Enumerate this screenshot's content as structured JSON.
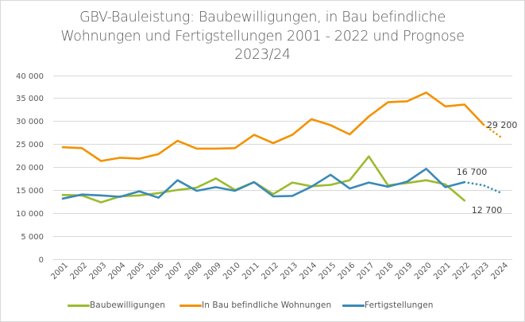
{
  "chart_data": {
    "type": "line",
    "title_lines": [
      "GBV-Bauleistung: Baubewilligungen, in Bau befindliche",
      "Wohnungen und Fertigstellungen 2001 - 2022 und Prognose",
      "2023/24"
    ],
    "xlabel": "",
    "ylabel": "",
    "categories": [
      "2001",
      "2002",
      "2003",
      "2004",
      "2005",
      "2006",
      "2007",
      "2008",
      "2009",
      "2010",
      "2011",
      "2012",
      "2013",
      "2014",
      "2015",
      "2016",
      "2017",
      "2018",
      "2019",
      "2020",
      "2021",
      "2022",
      "2023",
      "2024"
    ],
    "ylim": [
      0,
      40000
    ],
    "yticks": [
      0,
      5000,
      10000,
      15000,
      20000,
      25000,
      30000,
      35000,
      40000
    ],
    "ytick_labels": [
      "0",
      "5 000",
      "10 000",
      "15 000",
      "20 000",
      "25 000",
      "30 000",
      "35 000",
      "40 000"
    ],
    "grid": true,
    "legend_position": "bottom",
    "series": [
      {
        "name": "Baubewilligungen",
        "color": "#9bbb2f",
        "values": [
          13900,
          13800,
          12300,
          13600,
          13800,
          14300,
          15000,
          15500,
          17500,
          15000,
          16700,
          14100,
          16600,
          15800,
          16100,
          17100,
          22300,
          16000,
          16500,
          17100,
          16200,
          12700,
          null,
          null
        ],
        "forecast": [
          null,
          null,
          null,
          null,
          null,
          null,
          null,
          null,
          null,
          null,
          null,
          null,
          null,
          null,
          null,
          null,
          null,
          null,
          null,
          null,
          null,
          null,
          null,
          null
        ],
        "annotations": [
          {
            "category": "2022",
            "text": "12 700"
          }
        ]
      },
      {
        "name": "In Bau befindliche Wohnungen",
        "color": "#f39200",
        "values": [
          24300,
          24100,
          21300,
          22000,
          21800,
          22800,
          25700,
          24000,
          24000,
          24100,
          27000,
          25200,
          27000,
          30400,
          29100,
          27100,
          31000,
          34100,
          34300,
          36200,
          33200,
          33600,
          29200,
          null
        ],
        "forecast": [
          null,
          null,
          null,
          null,
          null,
          null,
          null,
          null,
          null,
          null,
          null,
          null,
          null,
          null,
          null,
          null,
          null,
          null,
          null,
          null,
          null,
          null,
          29200,
          26200
        ],
        "annotations": [
          {
            "category": "2023",
            "text": "29 200"
          }
        ]
      },
      {
        "name": "Fertigstellungen",
        "color": "#3a8ab6",
        "values": [
          13100,
          14000,
          13800,
          13500,
          14700,
          13300,
          17100,
          14800,
          15600,
          14800,
          16700,
          13600,
          13700,
          15700,
          18300,
          15300,
          16600,
          15700,
          16800,
          19600,
          15600,
          16700,
          null,
          null
        ],
        "forecast": [
          null,
          null,
          null,
          null,
          null,
          null,
          null,
          null,
          null,
          null,
          null,
          null,
          null,
          null,
          null,
          null,
          null,
          null,
          null,
          null,
          null,
          16700,
          16000,
          14200
        ],
        "annotations": [
          {
            "category": "2022",
            "text": "16 700"
          }
        ]
      }
    ]
  }
}
